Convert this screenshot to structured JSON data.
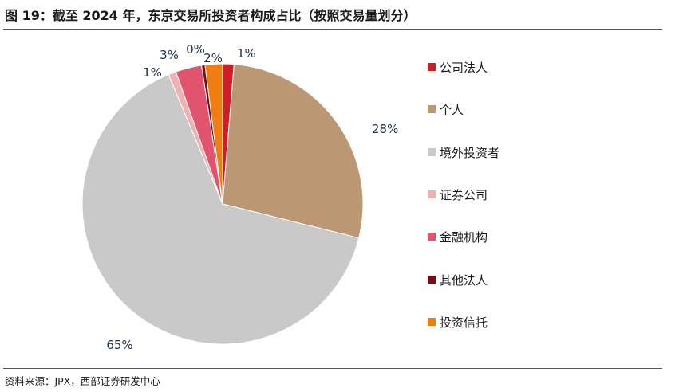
{
  "title": "图 19：截至 2024 年，东京交易所投资者构成占比（按照交易量划分）",
  "source": "资料来源：JPX，西部证券研发中心",
  "chart_data": {
    "type": "pie",
    "categories": [
      "公司法人",
      "个人",
      "境外投资者",
      "证券公司",
      "金融机构",
      "其他法人",
      "投资信托"
    ],
    "values": [
      1.3,
      27.6,
      64.8,
      0.9,
      3.0,
      0.4,
      2.0
    ],
    "labels": [
      "1%",
      "28%",
      "65%",
      "1%",
      "3%",
      "0%",
      "2%"
    ],
    "colors": [
      "#cc1f26",
      "#bb9873",
      "#c9c9c9",
      "#efb1b1",
      "#e0546e",
      "#7a0d10",
      "#f07d10"
    ],
    "legend_position": "right",
    "start_angle_deg": 0,
    "direction": "clockwise"
  }
}
